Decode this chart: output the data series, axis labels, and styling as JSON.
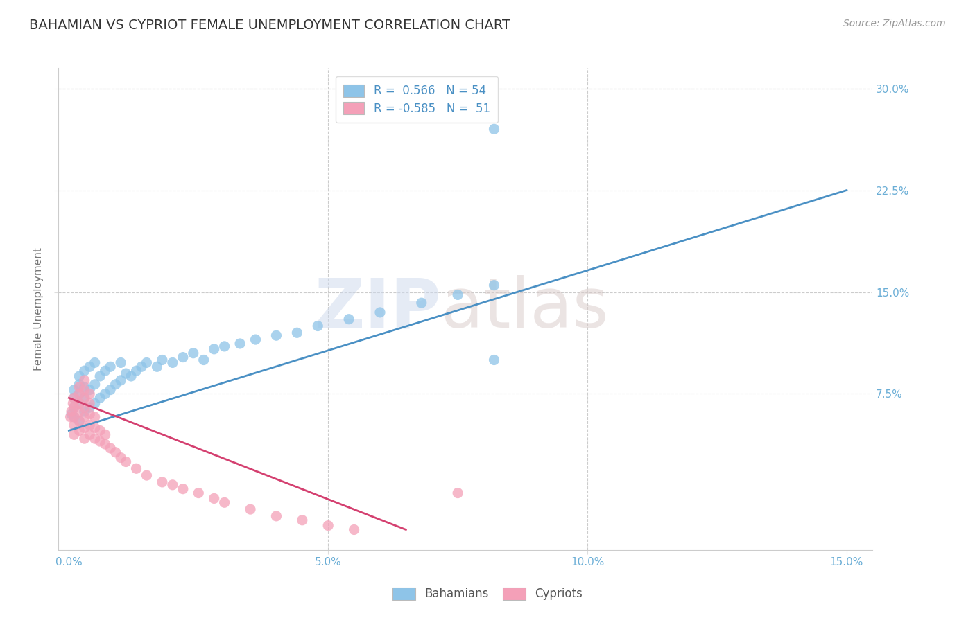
{
  "title": "BAHAMIAN VS CYPRIOT FEMALE UNEMPLOYMENT CORRELATION CHART",
  "source_text": "Source: ZipAtlas.com",
  "ylabel": "Female Unemployment",
  "xlim": [
    -0.002,
    0.155
  ],
  "ylim": [
    -0.04,
    0.315
  ],
  "xticks": [
    0.0,
    0.05,
    0.1,
    0.15
  ],
  "xtick_labels": [
    "0.0%",
    "5.0%",
    "10.0%",
    "15.0%"
  ],
  "yticks": [
    0.075,
    0.15,
    0.225,
    0.3
  ],
  "ytick_labels": [
    "7.5%",
    "15.0%",
    "22.5%",
    "30.0%"
  ],
  "bahamian_R": 0.566,
  "bahamian_N": 54,
  "cypriot_R": -0.585,
  "cypriot_N": 51,
  "blue_scatter_color": "#8ec4e8",
  "blue_line_color": "#4a90c4",
  "pink_scatter_color": "#f4a0b8",
  "pink_line_color": "#d44070",
  "background_color": "#ffffff",
  "grid_color": "#cccccc",
  "title_color": "#333333",
  "axis_label_color": "#777777",
  "tick_color": "#6baed6",
  "legend_labels": [
    "Bahamians",
    "Cypriots"
  ],
  "bahamian_scatter_x": [
    0.0005,
    0.001,
    0.001,
    0.001,
    0.001,
    0.002,
    0.002,
    0.002,
    0.002,
    0.002,
    0.003,
    0.003,
    0.003,
    0.003,
    0.004,
    0.004,
    0.004,
    0.005,
    0.005,
    0.005,
    0.006,
    0.006,
    0.007,
    0.007,
    0.008,
    0.008,
    0.009,
    0.01,
    0.01,
    0.011,
    0.012,
    0.013,
    0.014,
    0.015,
    0.017,
    0.018,
    0.02,
    0.022,
    0.024,
    0.026,
    0.028,
    0.03,
    0.033,
    0.036,
    0.04,
    0.044,
    0.048,
    0.054,
    0.06,
    0.068,
    0.075,
    0.082,
    0.082,
    0.082
  ],
  "bahamian_scatter_y": [
    0.06,
    0.058,
    0.065,
    0.072,
    0.078,
    0.055,
    0.068,
    0.075,
    0.082,
    0.088,
    0.062,
    0.072,
    0.08,
    0.092,
    0.065,
    0.078,
    0.095,
    0.068,
    0.082,
    0.098,
    0.072,
    0.088,
    0.075,
    0.092,
    0.078,
    0.095,
    0.082,
    0.085,
    0.098,
    0.09,
    0.088,
    0.092,
    0.095,
    0.098,
    0.095,
    0.1,
    0.098,
    0.102,
    0.105,
    0.1,
    0.108,
    0.11,
    0.112,
    0.115,
    0.118,
    0.12,
    0.125,
    0.13,
    0.135,
    0.142,
    0.148,
    0.155,
    0.1,
    0.27
  ],
  "cypriot_scatter_x": [
    0.0003,
    0.0005,
    0.0008,
    0.001,
    0.001,
    0.001,
    0.001,
    0.001,
    0.002,
    0.002,
    0.002,
    0.002,
    0.002,
    0.002,
    0.003,
    0.003,
    0.003,
    0.003,
    0.003,
    0.003,
    0.003,
    0.004,
    0.004,
    0.004,
    0.004,
    0.004,
    0.005,
    0.005,
    0.005,
    0.006,
    0.006,
    0.007,
    0.007,
    0.008,
    0.009,
    0.01,
    0.011,
    0.013,
    0.015,
    0.018,
    0.02,
    0.022,
    0.025,
    0.028,
    0.03,
    0.035,
    0.04,
    0.045,
    0.05,
    0.055,
    0.075
  ],
  "cypriot_scatter_y": [
    0.058,
    0.062,
    0.068,
    0.045,
    0.052,
    0.058,
    0.065,
    0.072,
    0.048,
    0.055,
    0.062,
    0.068,
    0.075,
    0.08,
    0.042,
    0.05,
    0.058,
    0.065,
    0.072,
    0.078,
    0.085,
    0.045,
    0.052,
    0.06,
    0.068,
    0.075,
    0.042,
    0.05,
    0.058,
    0.04,
    0.048,
    0.038,
    0.045,
    0.035,
    0.032,
    0.028,
    0.025,
    0.02,
    0.015,
    0.01,
    0.008,
    0.005,
    0.002,
    -0.002,
    -0.005,
    -0.01,
    -0.015,
    -0.018,
    -0.022,
    -0.025,
    0.002
  ],
  "bah_trend_x0": 0.0,
  "bah_trend_y0": 0.048,
  "bah_trend_x1": 0.15,
  "bah_trend_y1": 0.225,
  "cyp_trend_x0": 0.0,
  "cyp_trend_y0": 0.072,
  "cyp_trend_x1": 0.065,
  "cyp_trend_y1": -0.025
}
